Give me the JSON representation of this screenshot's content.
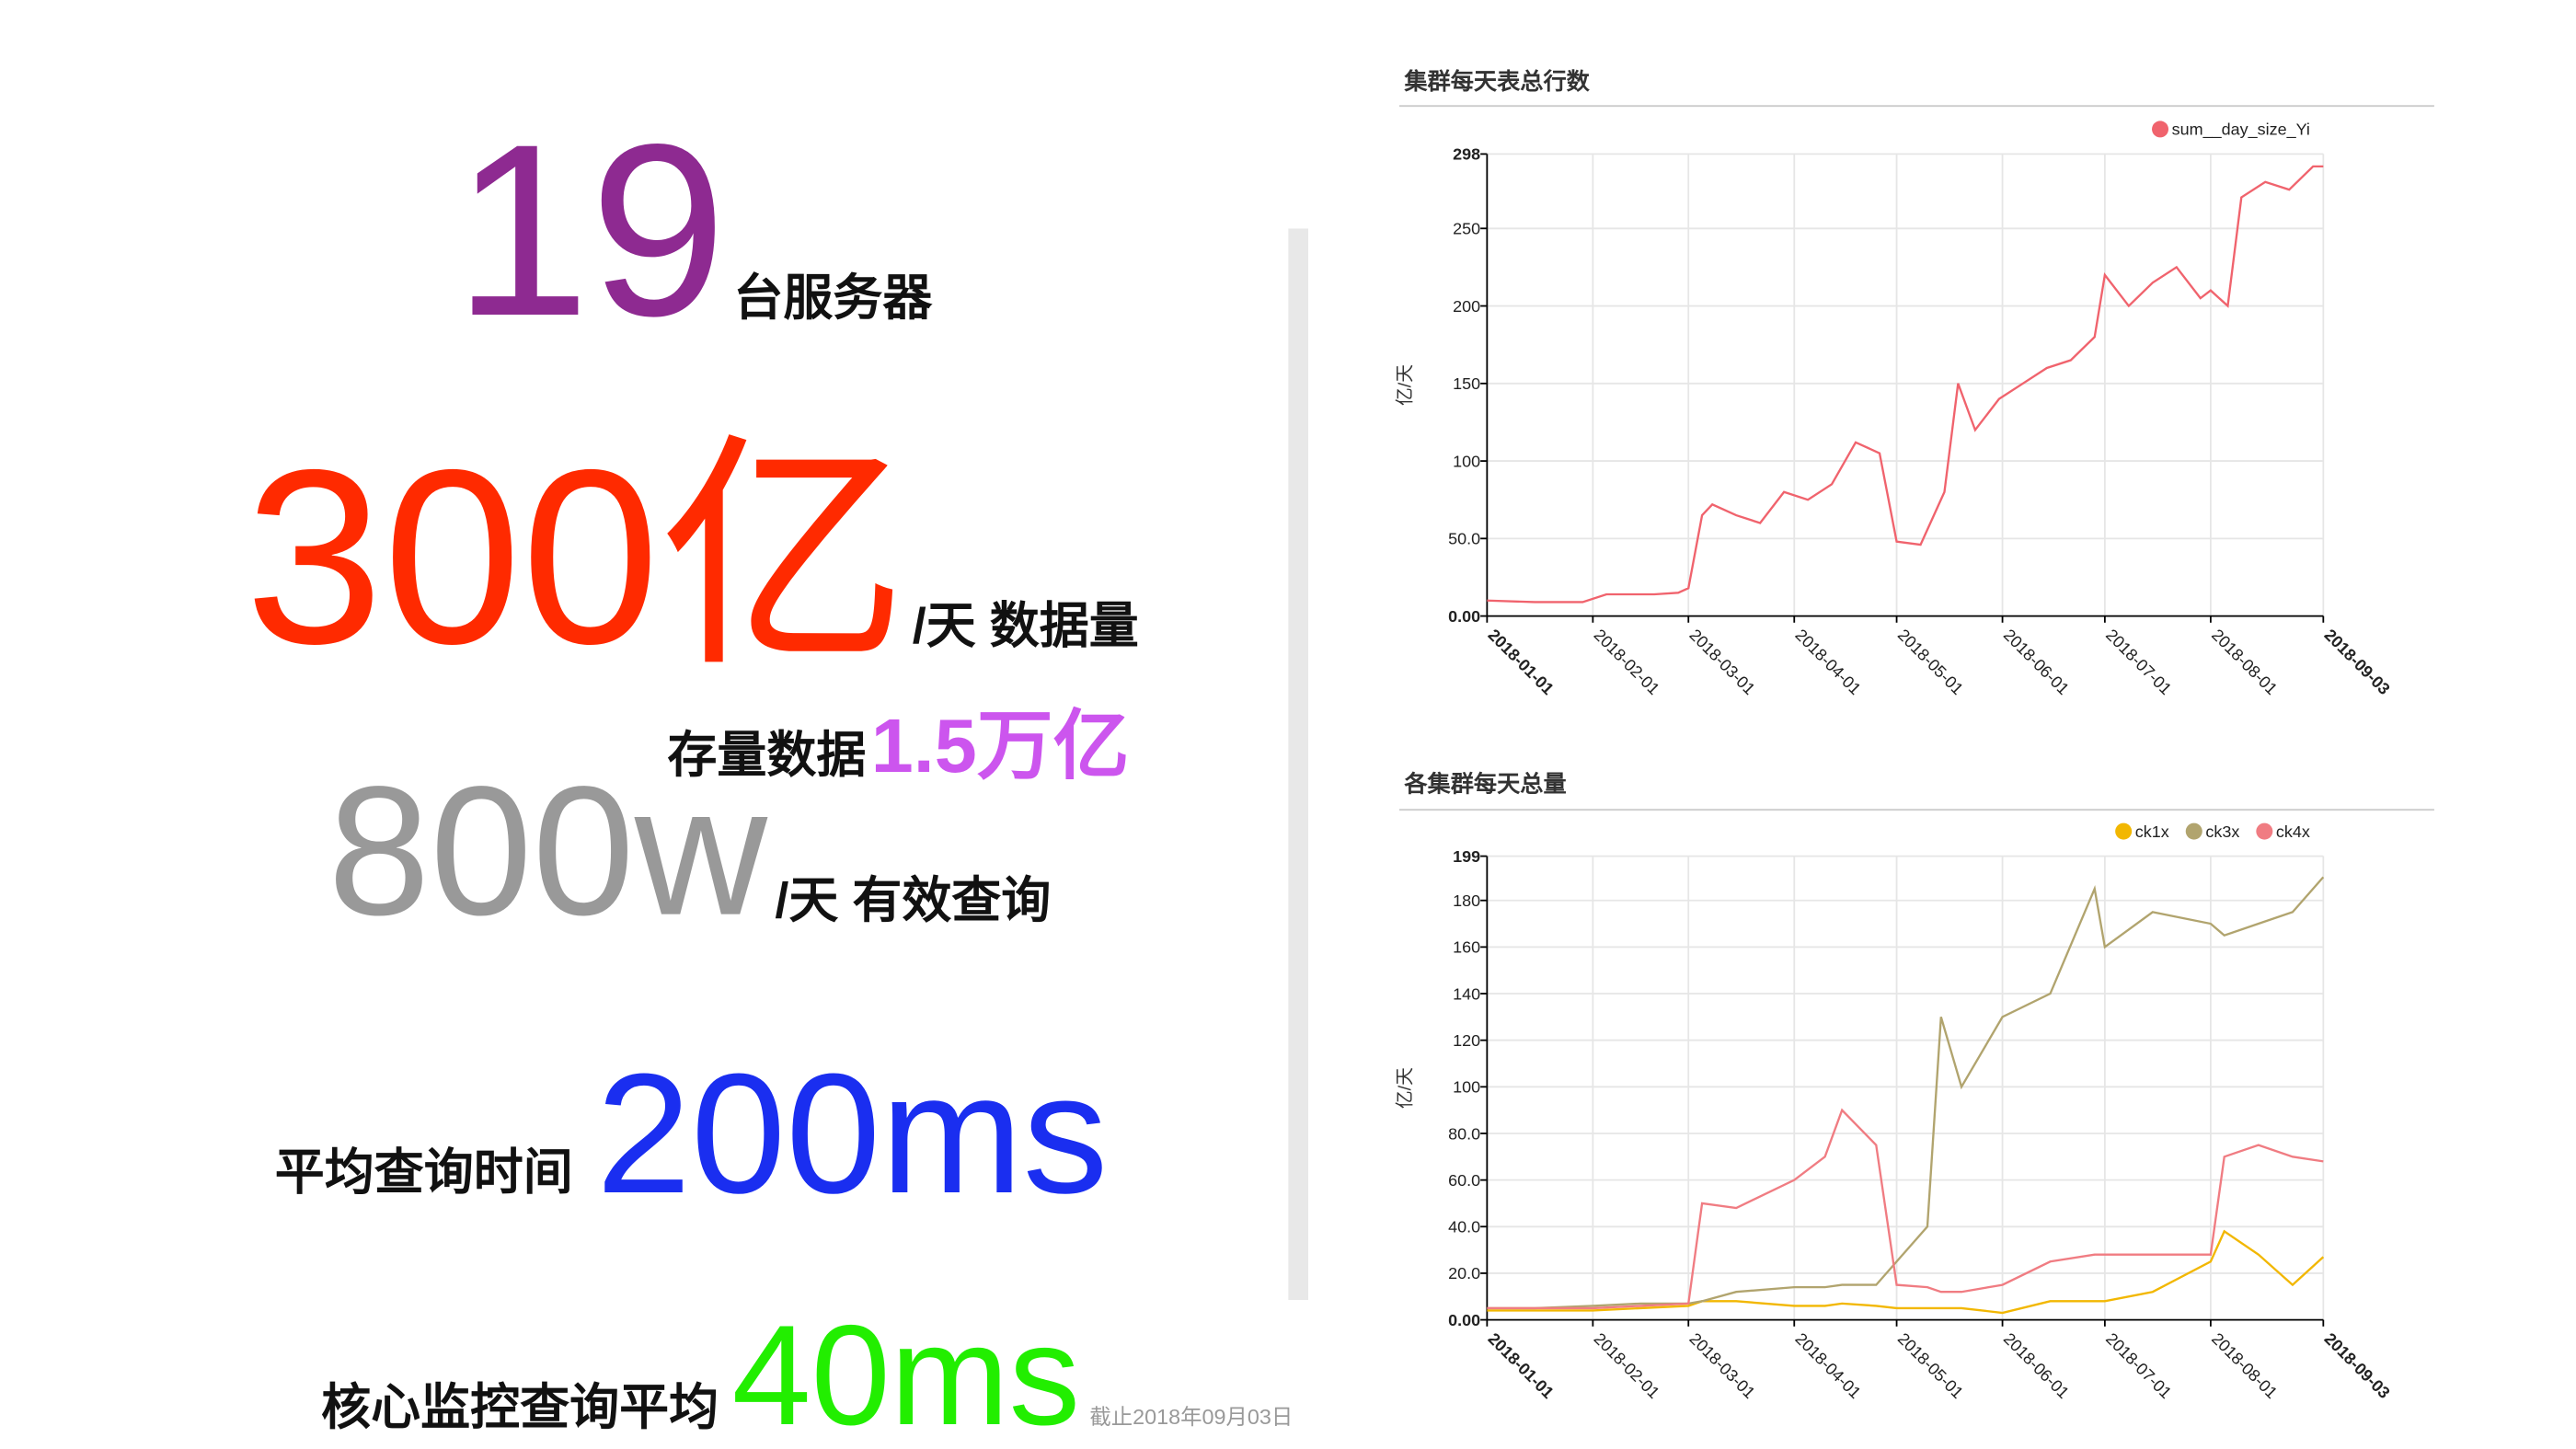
{
  "stats": {
    "servers_value": "19",
    "servers_label": "台服务器",
    "daily_volume_value": "300亿",
    "daily_volume_label": "/天 数据量",
    "stock_label": "存量数据",
    "stock_value": "1.5万亿",
    "daily_queries_value": "800w",
    "daily_queries_label": "/天 有效查询",
    "avg_query_label": "平均查询时间",
    "avg_query_value": "200ms",
    "core_query_label": "核心监控查询平均",
    "core_query_value": "40ms",
    "as_of": "截止2018年09月03日"
  },
  "chart_data": [
    {
      "type": "line",
      "title": "集群每天表总行数",
      "y_label": "亿/天",
      "x": [
        "2018-01-01",
        "2018-01-15",
        "2018-01-29",
        "2018-02-05",
        "2018-02-12",
        "2018-02-19",
        "2018-02-26",
        "2018-03-01",
        "2018-03-05",
        "2018-03-08",
        "2018-03-15",
        "2018-03-22",
        "2018-03-29",
        "2018-04-05",
        "2018-04-12",
        "2018-04-19",
        "2018-04-26",
        "2018-05-01",
        "2018-05-08",
        "2018-05-15",
        "2018-05-19",
        "2018-05-24",
        "2018-05-31",
        "2018-06-07",
        "2018-06-14",
        "2018-06-21",
        "2018-06-28",
        "2018-07-01",
        "2018-07-08",
        "2018-07-15",
        "2018-07-22",
        "2018-07-29",
        "2018-08-01",
        "2018-08-06",
        "2018-08-10",
        "2018-08-17",
        "2018-08-24",
        "2018-08-31",
        "2018-09-03"
      ],
      "series": [
        {
          "name": "sum__day_size_Yi",
          "color": "#f0636d",
          "values": [
            10,
            9,
            9,
            14,
            14,
            14,
            15,
            18,
            65,
            72,
            65,
            60,
            80,
            75,
            85,
            112,
            105,
            48,
            46,
            80,
            150,
            120,
            140,
            150,
            160,
            165,
            180,
            220,
            200,
            215,
            225,
            205,
            210,
            200,
            270,
            280,
            275,
            290,
            290
          ]
        }
      ],
      "xlim": [
        "2018-01-01",
        "2018-09-03"
      ],
      "xticks": [
        "2018-01-01",
        "2018-02-01",
        "2018-03-01",
        "2018-04-01",
        "2018-05-01",
        "2018-06-01",
        "2018-07-01",
        "2018-08-01",
        "2018-09-03"
      ],
      "ylim": [
        0,
        298
      ],
      "yticks": [
        {
          "value": 0,
          "label": "0.00"
        },
        {
          "value": 50,
          "label": "50.0"
        },
        100,
        150,
        200,
        250,
        298
      ],
      "grid": true,
      "legend": "top-right"
    },
    {
      "type": "line",
      "title": "各集群每天总量",
      "y_label": "亿/天",
      "x": [
        "2018-01-01",
        "2018-01-15",
        "2018-02-01",
        "2018-02-15",
        "2018-03-01",
        "2018-03-05",
        "2018-03-15",
        "2018-04-01",
        "2018-04-10",
        "2018-04-15",
        "2018-04-25",
        "2018-05-01",
        "2018-05-10",
        "2018-05-14",
        "2018-05-20",
        "2018-06-01",
        "2018-06-15",
        "2018-06-28",
        "2018-07-01",
        "2018-07-15",
        "2018-08-01",
        "2018-08-05",
        "2018-08-15",
        "2018-08-25",
        "2018-09-03"
      ],
      "series": [
        {
          "name": "ck1x",
          "color": "#f2b701",
          "values": [
            4,
            4,
            4,
            5,
            6,
            8,
            8,
            6,
            6,
            7,
            6,
            5,
            5,
            5,
            5,
            3,
            8,
            8,
            8,
            12,
            25,
            38,
            28,
            15,
            27
          ]
        },
        {
          "name": "ck3x",
          "color": "#b1a46e",
          "values": [
            5,
            5,
            6,
            7,
            7,
            8,
            12,
            14,
            14,
            15,
            15,
            25,
            40,
            130,
            100,
            130,
            140,
            185,
            160,
            175,
            170,
            165,
            170,
            175,
            190
          ]
        },
        {
          "name": "ck4x",
          "color": "#f07c82",
          "values": [
            5,
            5,
            5,
            6,
            7,
            50,
            48,
            60,
            70,
            90,
            75,
            15,
            14,
            12,
            12,
            15,
            25,
            28,
            28,
            28,
            28,
            70,
            75,
            70,
            68
          ]
        }
      ],
      "xlim": [
        "2018-01-01",
        "2018-09-03"
      ],
      "xticks": [
        "2018-01-01",
        "2018-02-01",
        "2018-03-01",
        "2018-04-01",
        "2018-05-01",
        "2018-06-01",
        "2018-07-01",
        "2018-08-01",
        "2018-09-03"
      ],
      "ylim": [
        0,
        199
      ],
      "yticks": [
        {
          "value": 0,
          "label": "0.00"
        },
        {
          "value": 20,
          "label": "20.0"
        },
        {
          "value": 40,
          "label": "40.0"
        },
        {
          "value": 60,
          "label": "60.0"
        },
        {
          "value": 80,
          "label": "80.0"
        },
        100,
        120,
        140,
        160,
        180,
        199
      ],
      "grid": true,
      "legend": "top-right"
    }
  ]
}
